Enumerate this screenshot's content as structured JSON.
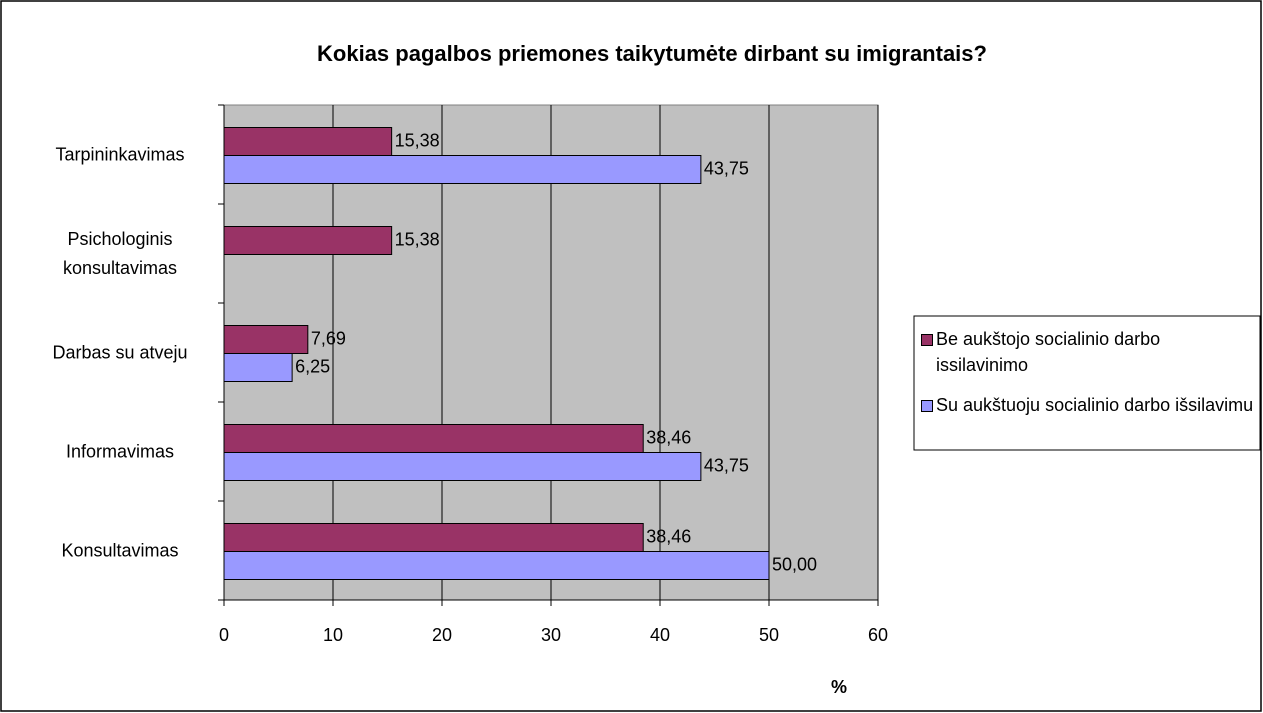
{
  "chart_data": {
    "type": "hbar",
    "title": "Kokias pagalbos priemones taikytumėte dirbant su imigrantais?",
    "x_label": "%",
    "categories": [
      "Tarpininkavimas",
      "Psichologinis konsultavimas",
      "Darbas su atveju",
      "Informavimas",
      "Konsultavimas"
    ],
    "series": [
      {
        "name": "Be aukštojo socialinio darbo issilavinimo",
        "color": "#993366",
        "values": [
          15.38,
          15.38,
          7.69,
          38.46,
          38.46
        ],
        "value_labels": [
          "15,38",
          "15,38",
          "7,69",
          "38,46",
          "38,46"
        ]
      },
      {
        "name": "Su aukštuoju socialinio darbo išsilavimu",
        "color": "#9999ff",
        "values": [
          43.75,
          null,
          6.25,
          43.75,
          50.0
        ],
        "value_labels": [
          "43,75",
          null,
          "6,25",
          "43,75",
          "50,00"
        ]
      }
    ],
    "xlim": [
      0,
      60
    ],
    "xticks": [
      0,
      10,
      20,
      30,
      40,
      50,
      60
    ],
    "grid": true,
    "legend": "right"
  }
}
